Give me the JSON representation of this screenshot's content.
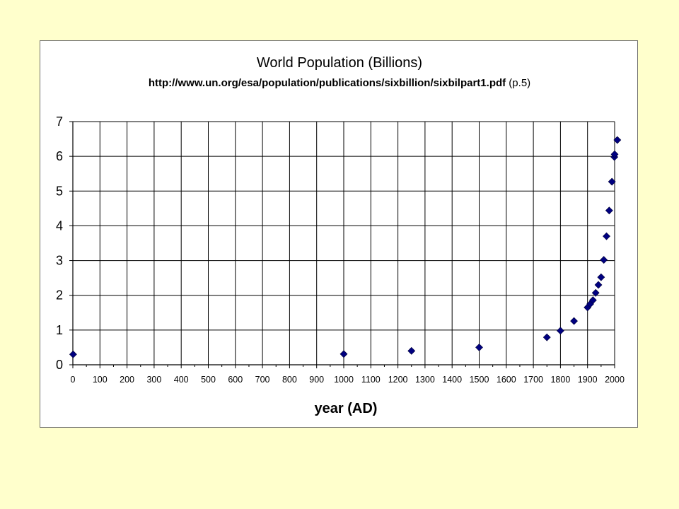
{
  "chart_data": {
    "type": "scatter",
    "title": "World Population (Billions)",
    "subtitle_url": "http://www.un.org/esa/population/publications/sixbillion/sixbilpart1.pdf",
    "subtitle_suffix": " (p.5)",
    "xlabel": "year (AD)",
    "ylabel": "",
    "xlim": [
      0,
      2000
    ],
    "ylim": [
      0,
      7
    ],
    "x_ticks": [
      0,
      100,
      200,
      300,
      400,
      500,
      600,
      700,
      800,
      900,
      1000,
      1100,
      1200,
      1300,
      1400,
      1500,
      1600,
      1700,
      1800,
      1900,
      2000
    ],
    "y_ticks": [
      0,
      1,
      2,
      3,
      4,
      5,
      6,
      7
    ],
    "grid": true,
    "legend": "none",
    "marker": "diamond",
    "marker_color": "#000080",
    "series": [
      {
        "x": [
          1,
          1000,
          1250,
          1500,
          1750,
          1800,
          1850,
          1900,
          1910,
          1920,
          1930,
          1940,
          1950,
          1960,
          1970,
          1980,
          1990,
          1999,
          2000,
          2010
        ],
        "y": [
          0.3,
          0.31,
          0.4,
          0.5,
          0.79,
          0.98,
          1.26,
          1.65,
          1.75,
          1.86,
          2.07,
          2.3,
          2.52,
          3.02,
          3.7,
          4.44,
          5.27,
          5.98,
          6.06,
          6.47
        ]
      }
    ]
  }
}
